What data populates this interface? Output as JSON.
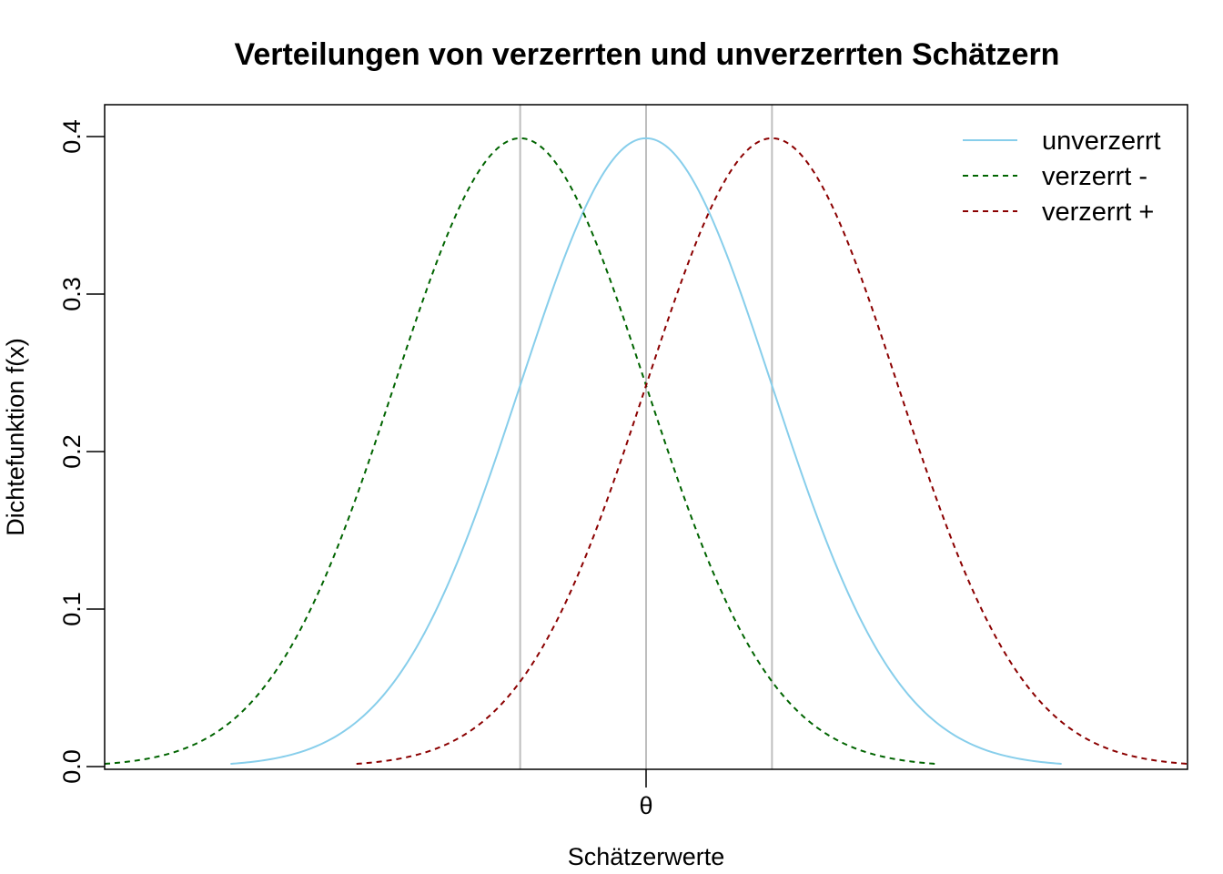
{
  "chart_data": {
    "type": "line",
    "title": "Verteilungen von verzerrten und unverzerrten Schätzern",
    "xlabel": "Schätzerwerte",
    "ylabel": "Dichtefunktion f(x)",
    "x_tick_labels": [
      "θ"
    ],
    "x_ticks": [
      0
    ],
    "xlim": [
      -4.3,
      4.3
    ],
    "ylim": [
      0.0,
      0.4
    ],
    "y_ticks": [
      0.0,
      0.1,
      0.2,
      0.3,
      0.4
    ],
    "y_tick_labels": [
      "0.0",
      "0.1",
      "0.2",
      "0.3",
      "0.4"
    ],
    "vertical_lines": [
      -1,
      0,
      1
    ],
    "vertical_line_color": "#bebebe",
    "legend": "top-right",
    "series": [
      {
        "name": "unverzerrt",
        "mean": 0,
        "sd": 1,
        "x_range": [
          -3.3,
          3.3
        ],
        "color": "#87ceeb",
        "dash": "solid"
      },
      {
        "name": "verzerrt -",
        "mean": -1,
        "sd": 1,
        "x_range": [
          -4.3,
          2.3
        ],
        "color": "#006400",
        "dash": "dashed"
      },
      {
        "name": "verzerrt +",
        "mean": 1,
        "sd": 1,
        "x_range": [
          -2.3,
          4.3
        ],
        "color": "#8b0000",
        "dash": "dashed"
      }
    ]
  }
}
